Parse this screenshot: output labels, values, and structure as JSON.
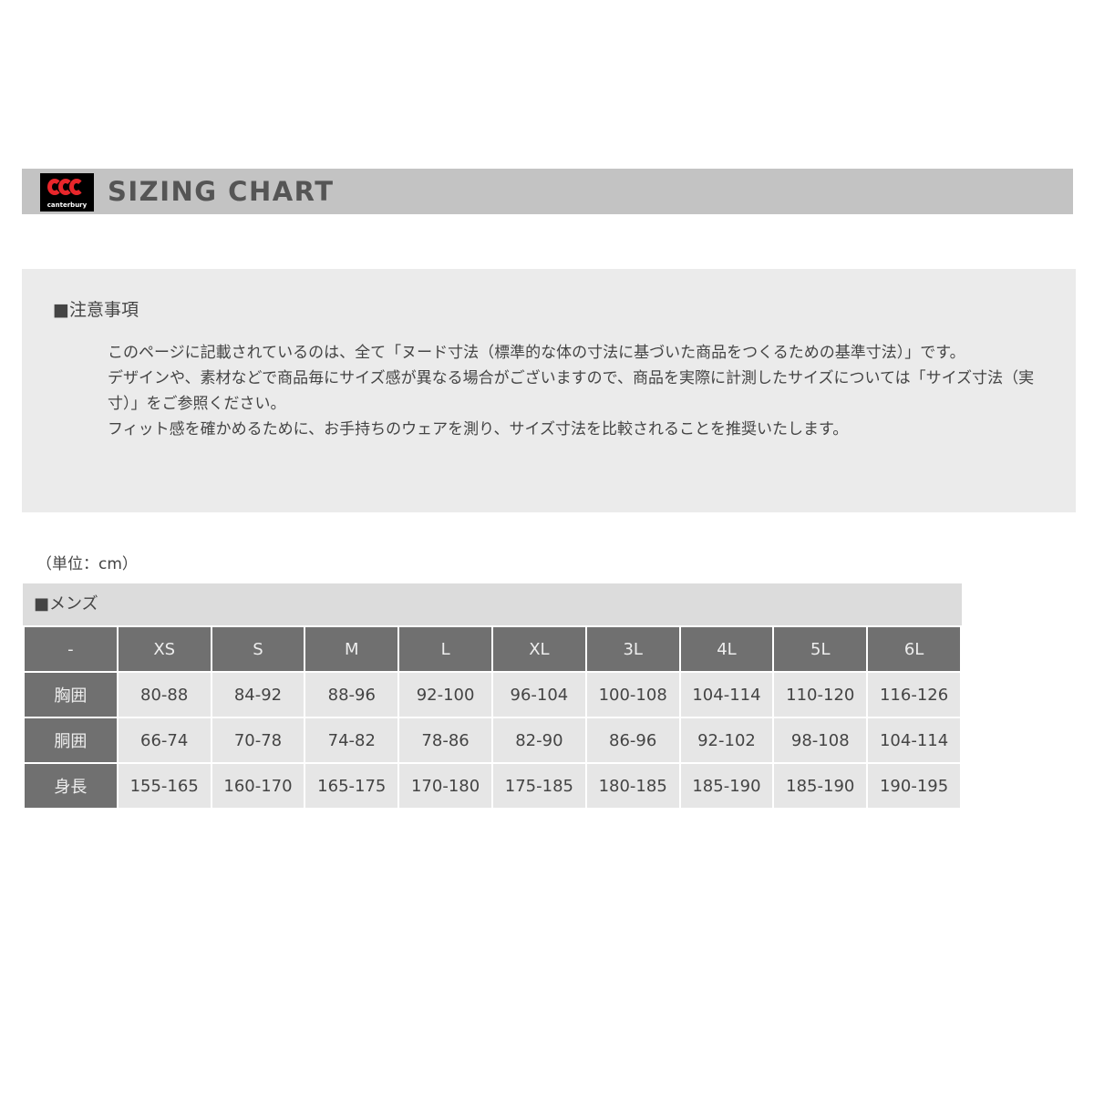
{
  "header": {
    "title": "SIZING CHART",
    "logo_text": "canterbury"
  },
  "notes": {
    "heading": "■注意事項",
    "paragraphs": [
      "このページに記載されているのは、全て「ヌード寸法（標準的な体の寸法に基づいた商品をつくるための基準寸法）」です。",
      "デザインや、素材などで商品毎にサイズ感が異なる場合がございますので、商品を実際に計測したサイズについては「サイズ寸法（実寸）」をご参照ください。",
      "フィット感を確かめるために、お手持ちのウェアを測り、サイズ寸法を比較されることを推奨いたします。"
    ]
  },
  "unit": "（単位：cm）",
  "table": {
    "title": "■メンズ",
    "headers": [
      "-",
      "XS",
      "S",
      "M",
      "L",
      "XL",
      "3L",
      "4L",
      "5L",
      "6L"
    ],
    "rows": [
      {
        "label": "胸囲",
        "values": [
          "80-88",
          "84-92",
          "88-96",
          "92-100",
          "96-104",
          "100-108",
          "104-114",
          "110-120",
          "116-126"
        ]
      },
      {
        "label": "胴囲",
        "values": [
          "66-74",
          "70-78",
          "74-82",
          "78-86",
          "82-90",
          "86-96",
          "92-102",
          "98-108",
          "104-114"
        ]
      },
      {
        "label": "身長",
        "values": [
          "155-165",
          "160-170",
          "165-175",
          "170-180",
          "175-185",
          "180-185",
          "185-190",
          "185-190",
          "190-195"
        ]
      }
    ]
  }
}
